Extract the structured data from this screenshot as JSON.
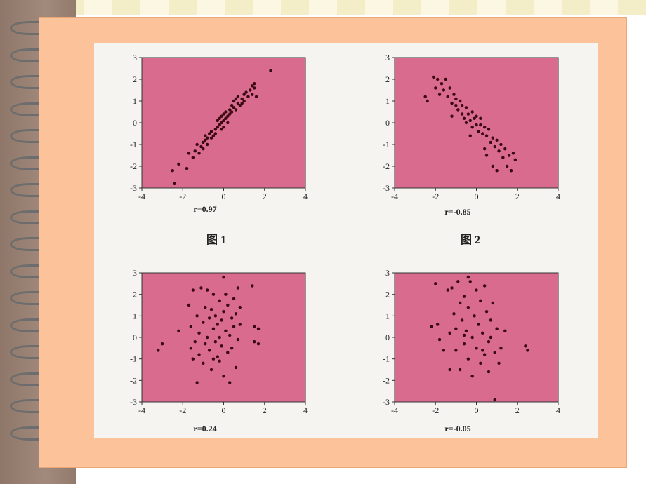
{
  "chart_data": [
    {
      "type": "scatter",
      "xlim": [
        -4,
        4
      ],
      "ylim": [
        -3,
        3
      ],
      "xticks": [
        -4,
        -2,
        0,
        2,
        4
      ],
      "yticks": [
        -3,
        -2,
        -1,
        0,
        1,
        2,
        3
      ],
      "annotation": "r=0.97",
      "caption": "图 1",
      "points": [
        [
          -2.4,
          -2.8
        ],
        [
          -2.5,
          -2.2
        ],
        [
          -2.2,
          -1.9
        ],
        [
          -1.8,
          -2.1
        ],
        [
          -1.5,
          -1.6
        ],
        [
          -1.4,
          -1.3
        ],
        [
          -1.3,
          -1.0
        ],
        [
          -1.2,
          -1.4
        ],
        [
          -1.1,
          -1.1
        ],
        [
          -1.0,
          -0.9
        ],
        [
          -1.0,
          -1.2
        ],
        [
          -0.9,
          -0.8
        ],
        [
          -0.8,
          -0.7
        ],
        [
          -0.8,
          -1.0
        ],
        [
          -0.7,
          -0.5
        ],
        [
          -0.6,
          -0.7
        ],
        [
          -0.6,
          -0.4
        ],
        [
          -0.5,
          -0.6
        ],
        [
          -0.4,
          -0.3
        ],
        [
          -0.4,
          -0.5
        ],
        [
          -0.3,
          -0.2
        ],
        [
          -0.3,
          0.1
        ],
        [
          -0.2,
          -0.1
        ],
        [
          -0.2,
          0.2
        ],
        [
          -0.1,
          0.0
        ],
        [
          -0.1,
          0.3
        ],
        [
          0.0,
          -0.2
        ],
        [
          0.0,
          0.1
        ],
        [
          0.0,
          0.4
        ],
        [
          0.1,
          0.2
        ],
        [
          0.1,
          0.5
        ],
        [
          0.2,
          0.0
        ],
        [
          0.2,
          0.3
        ],
        [
          0.3,
          0.6
        ],
        [
          0.3,
          0.4
        ],
        [
          0.4,
          0.8
        ],
        [
          0.4,
          0.5
        ],
        [
          0.5,
          0.7
        ],
        [
          0.5,
          1.0
        ],
        [
          0.6,
          0.6
        ],
        [
          0.7,
          0.9
        ],
        [
          0.7,
          1.2
        ],
        [
          0.8,
          0.8
        ],
        [
          0.9,
          1.1
        ],
        [
          1.0,
          1.0
        ],
        [
          1.0,
          1.3
        ],
        [
          1.1,
          1.4
        ],
        [
          1.2,
          1.2
        ],
        [
          1.3,
          1.5
        ],
        [
          1.4,
          1.3
        ],
        [
          1.4,
          1.7
        ],
        [
          1.5,
          1.8
        ],
        [
          1.6,
          1.2
        ],
        [
          1.5,
          1.6
        ],
        [
          2.3,
          2.4
        ],
        [
          -1.7,
          -1.4
        ],
        [
          -0.9,
          -0.6
        ],
        [
          0.6,
          1.1
        ],
        [
          0.9,
          0.9
        ],
        [
          -0.1,
          -0.3
        ]
      ]
    },
    {
      "type": "scatter",
      "xlim": [
        -4,
        4
      ],
      "ylim": [
        -3,
        3
      ],
      "xticks": [
        -4,
        -2,
        0,
        2,
        4
      ],
      "yticks": [
        -3,
        -2,
        -1,
        0,
        1,
        2,
        3
      ],
      "annotation": "r=-0.85",
      "caption": "图 2",
      "points": [
        [
          -2.5,
          1.2
        ],
        [
          -2.4,
          1.0
        ],
        [
          -2.1,
          2.1
        ],
        [
          -2.0,
          1.6
        ],
        [
          -1.9,
          2.0
        ],
        [
          -1.8,
          1.3
        ],
        [
          -1.7,
          1.8
        ],
        [
          -1.6,
          1.5
        ],
        [
          -1.5,
          2.0
        ],
        [
          -1.4,
          1.2
        ],
        [
          -1.3,
          1.6
        ],
        [
          -1.2,
          0.9
        ],
        [
          -1.1,
          1.3
        ],
        [
          -1.0,
          0.8
        ],
        [
          -1.0,
          1.1
        ],
        [
          -0.9,
          0.6
        ],
        [
          -0.8,
          1.0
        ],
        [
          -0.7,
          0.4
        ],
        [
          -0.7,
          0.8
        ],
        [
          -0.6,
          0.2
        ],
        [
          -0.5,
          0.7
        ],
        [
          -0.5,
          0.0
        ],
        [
          -0.4,
          0.4
        ],
        [
          -0.3,
          0.1
        ],
        [
          -0.2,
          0.5
        ],
        [
          -0.2,
          -0.2
        ],
        [
          -0.1,
          0.2
        ],
        [
          0.0,
          -0.1
        ],
        [
          0.0,
          0.3
        ],
        [
          0.1,
          -0.4
        ],
        [
          0.2,
          -0.1
        ],
        [
          0.2,
          0.2
        ],
        [
          0.3,
          -0.5
        ],
        [
          0.4,
          -0.2
        ],
        [
          0.4,
          -1.2
        ],
        [
          0.5,
          -0.6
        ],
        [
          0.6,
          -0.3
        ],
        [
          0.7,
          -0.9
        ],
        [
          0.8,
          -0.7
        ],
        [
          0.9,
          -1.1
        ],
        [
          1.0,
          -0.8
        ],
        [
          1.1,
          -1.3
        ],
        [
          1.2,
          -1.0
        ],
        [
          1.3,
          -1.6
        ],
        [
          1.4,
          -1.2
        ],
        [
          1.5,
          -2.0
        ],
        [
          1.6,
          -1.5
        ],
        [
          1.7,
          -2.2
        ],
        [
          1.8,
          -1.4
        ],
        [
          1.9,
          -1.7
        ],
        [
          1.0,
          -2.2
        ],
        [
          0.5,
          -1.5
        ],
        [
          -1.2,
          0.3
        ],
        [
          -0.3,
          -0.6
        ],
        [
          0.8,
          -2.0
        ]
      ]
    },
    {
      "type": "scatter",
      "xlim": [
        -4,
        4
      ],
      "ylim": [
        -3,
        3
      ],
      "xticks": [
        -4,
        -2,
        0,
        2,
        4
      ],
      "yticks": [
        -3,
        -2,
        -1,
        0,
        1,
        2,
        3
      ],
      "annotation": "r=0.24",
      "caption": "",
      "points": [
        [
          -3.2,
          -0.6
        ],
        [
          -3.0,
          -0.3
        ],
        [
          -2.2,
          0.3
        ],
        [
          -1.7,
          1.5
        ],
        [
          -1.6,
          0.5
        ],
        [
          -1.6,
          -0.5
        ],
        [
          -1.5,
          -1.0
        ],
        [
          -1.5,
          2.2
        ],
        [
          -1.4,
          -0.2
        ],
        [
          -1.3,
          1.0
        ],
        [
          -1.2,
          0.2
        ],
        [
          -1.2,
          -0.8
        ],
        [
          -1.1,
          2.3
        ],
        [
          -1.0,
          -1.2
        ],
        [
          -1.0,
          0.7
        ],
        [
          -0.9,
          1.4
        ],
        [
          -0.9,
          -0.3
        ],
        [
          -0.8,
          2.2
        ],
        [
          -0.8,
          0.0
        ],
        [
          -0.7,
          0.9
        ],
        [
          -0.7,
          -0.6
        ],
        [
          -0.6,
          1.3
        ],
        [
          -0.6,
          -1.5
        ],
        [
          -0.5,
          0.4
        ],
        [
          -0.5,
          2.0
        ],
        [
          -0.4,
          -0.2
        ],
        [
          -0.4,
          1.0
        ],
        [
          -0.3,
          0.6
        ],
        [
          -0.3,
          -0.9
        ],
        [
          -0.2,
          1.7
        ],
        [
          -0.2,
          0.0
        ],
        [
          -0.1,
          -0.4
        ],
        [
          -0.1,
          0.8
        ],
        [
          0.0,
          1.2
        ],
        [
          0.0,
          -1.8
        ],
        [
          0.1,
          0.3
        ],
        [
          0.1,
          2.0
        ],
        [
          0.2,
          -0.7
        ],
        [
          0.2,
          1.5
        ],
        [
          0.3,
          0.1
        ],
        [
          0.3,
          -2.1
        ],
        [
          0.4,
          0.9
        ],
        [
          0.4,
          -0.5
        ],
        [
          0.5,
          1.8
        ],
        [
          0.5,
          0.5
        ],
        [
          0.6,
          -1.4
        ],
        [
          0.6,
          1.1
        ],
        [
          0.7,
          -0.1
        ],
        [
          0.7,
          2.3
        ],
        [
          0.8,
          0.6
        ],
        [
          0.8,
          1.4
        ],
        [
          1.5,
          0.5
        ],
        [
          1.7,
          0.4
        ],
        [
          1.5,
          -0.2
        ],
        [
          1.7,
          -0.3
        ],
        [
          -0.5,
          -1.0
        ],
        [
          0.0,
          2.8
        ],
        [
          -1.3,
          -2.1
        ],
        [
          1.4,
          2.4
        ],
        [
          -0.2,
          -1.1
        ]
      ]
    },
    {
      "type": "scatter",
      "xlim": [
        -4,
        4
      ],
      "ylim": [
        -3,
        3
      ],
      "xticks": [
        -4,
        -2,
        0,
        2,
        4
      ],
      "yticks": [
        -3,
        -2,
        -1,
        0,
        1,
        2,
        3
      ],
      "annotation": "r=-0.05",
      "caption": "",
      "points": [
        [
          -2.2,
          0.5
        ],
        [
          -2.0,
          2.5
        ],
        [
          -1.9,
          0.6
        ],
        [
          -1.8,
          -0.1
        ],
        [
          -1.6,
          -0.6
        ],
        [
          -1.4,
          2.2
        ],
        [
          -1.3,
          0.2
        ],
        [
          -1.3,
          -1.5
        ],
        [
          -1.2,
          2.3
        ],
        [
          -1.1,
          1.1
        ],
        [
          -1.0,
          -0.6
        ],
        [
          -1.0,
          0.4
        ],
        [
          -0.9,
          2.6
        ],
        [
          -0.8,
          1.6
        ],
        [
          -0.8,
          -1.5
        ],
        [
          -0.7,
          0.8
        ],
        [
          -0.6,
          -0.3
        ],
        [
          -0.6,
          1.9
        ],
        [
          -0.5,
          0.3
        ],
        [
          -0.4,
          -1.0
        ],
        [
          -0.4,
          1.4
        ],
        [
          -0.3,
          2.6
        ],
        [
          -0.2,
          0.0
        ],
        [
          -0.2,
          -1.8
        ],
        [
          -0.1,
          1.0
        ],
        [
          0.0,
          -0.5
        ],
        [
          0.0,
          2.2
        ],
        [
          0.1,
          0.6
        ],
        [
          0.2,
          -1.2
        ],
        [
          0.2,
          1.7
        ],
        [
          0.3,
          0.2
        ],
        [
          0.4,
          -0.8
        ],
        [
          0.4,
          2.4
        ],
        [
          0.5,
          1.2
        ],
        [
          0.6,
          -0.2
        ],
        [
          0.6,
          -1.6
        ],
        [
          0.7,
          0.8
        ],
        [
          0.8,
          1.6
        ],
        [
          0.9,
          -0.7
        ],
        [
          1.0,
          0.4
        ],
        [
          1.1,
          -1.2
        ],
        [
          1.2,
          -0.5
        ],
        [
          1.4,
          0.3
        ],
        [
          2.4,
          -0.4
        ],
        [
          2.5,
          -0.6
        ],
        [
          -0.4,
          2.8
        ],
        [
          0.9,
          -2.9
        ],
        [
          -0.6,
          0.1
        ],
        [
          0.3,
          -0.6
        ],
        [
          0.7,
          0.0
        ]
      ]
    }
  ]
}
